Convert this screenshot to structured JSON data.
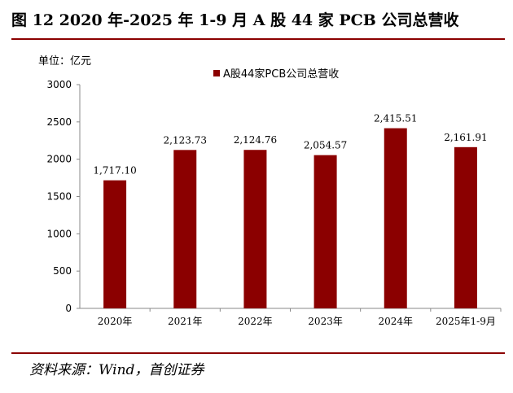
{
  "figure": {
    "title": "图 12 2020 年-2025 年 1-9 月 A 股 44 家 PCB 公司总营收",
    "unit_label": "单位：亿元",
    "source": "资料来源：Wind，首创证券"
  },
  "chart_data": {
    "type": "bar",
    "categories": [
      "2020年",
      "2021年",
      "2022年",
      "2023年",
      "2024年",
      "2025年1-9月"
    ],
    "series": [
      {
        "name": "A股44家PCB公司总营收",
        "values": [
          1717.1,
          2123.73,
          2124.76,
          2054.57,
          2415.51,
          2161.91
        ],
        "value_labels": [
          "1,717.10",
          "2,123.73",
          "2,124.76",
          "2,054.57",
          "2,415.51",
          "2,161.91"
        ]
      }
    ],
    "ylim": [
      0,
      3000
    ],
    "yticks": [
      0,
      500,
      1000,
      1500,
      2000,
      2500,
      3000
    ],
    "grid": false,
    "legend_position": "top-center",
    "colors": {
      "bar": "#8b0000",
      "rule": "#8b0000"
    }
  }
}
